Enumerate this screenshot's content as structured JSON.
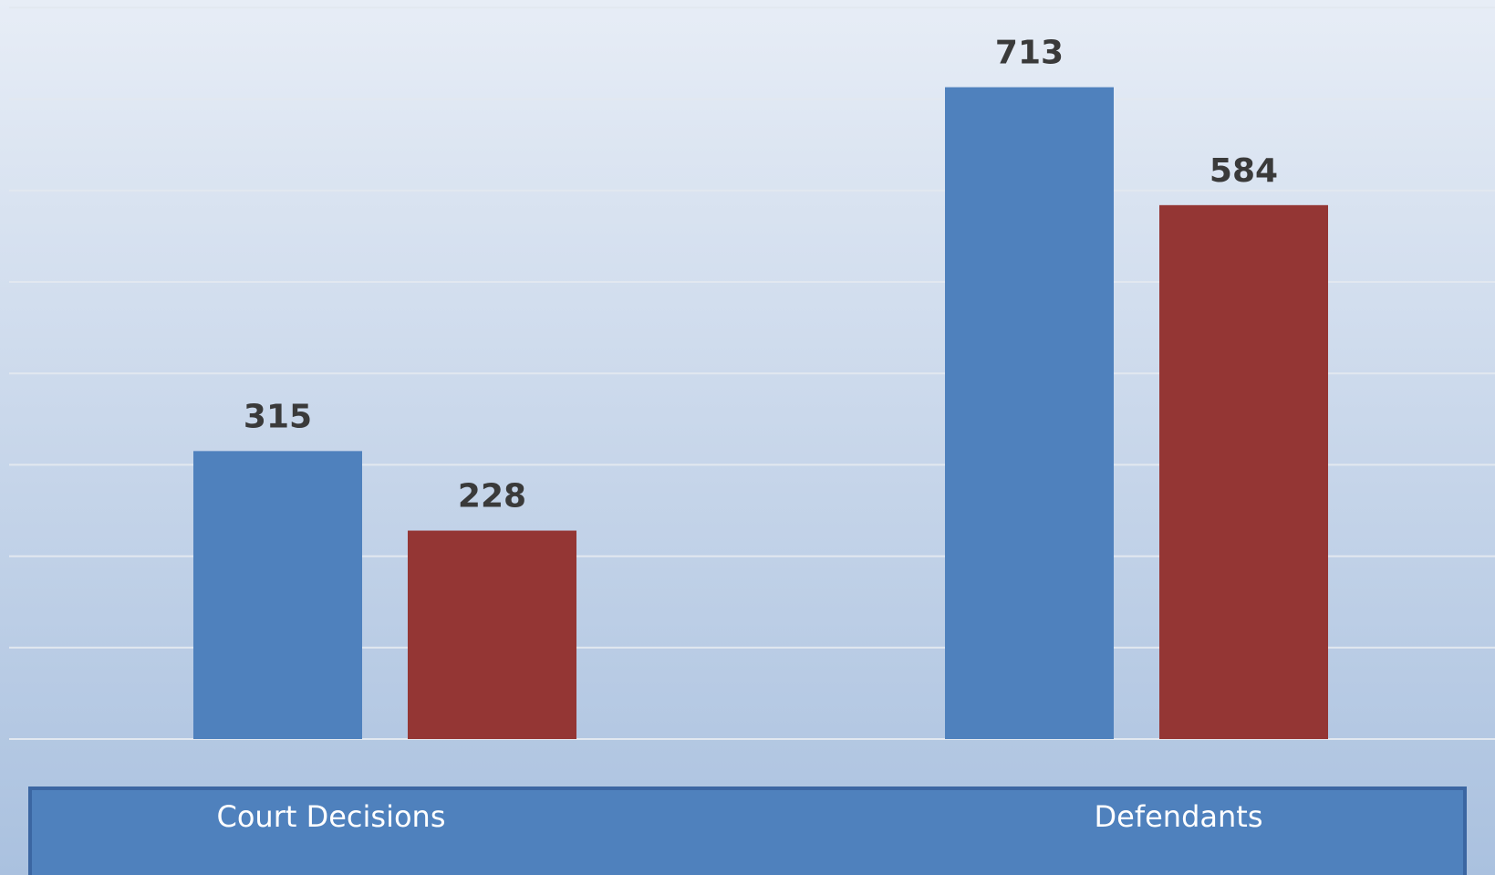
{
  "chart_data": {
    "type": "bar",
    "categories": [
      "Court Decisions",
      "Defendants"
    ],
    "series": [
      {
        "color": "#4f81bd",
        "values": [
          315,
          713
        ]
      },
      {
        "color": "#943634",
        "values": [
          228,
          584
        ]
      }
    ],
    "ylim": [
      0,
      800
    ],
    "yticks": [
      0,
      100,
      200,
      300,
      400,
      500,
      600,
      700,
      800
    ],
    "grid": true
  }
}
